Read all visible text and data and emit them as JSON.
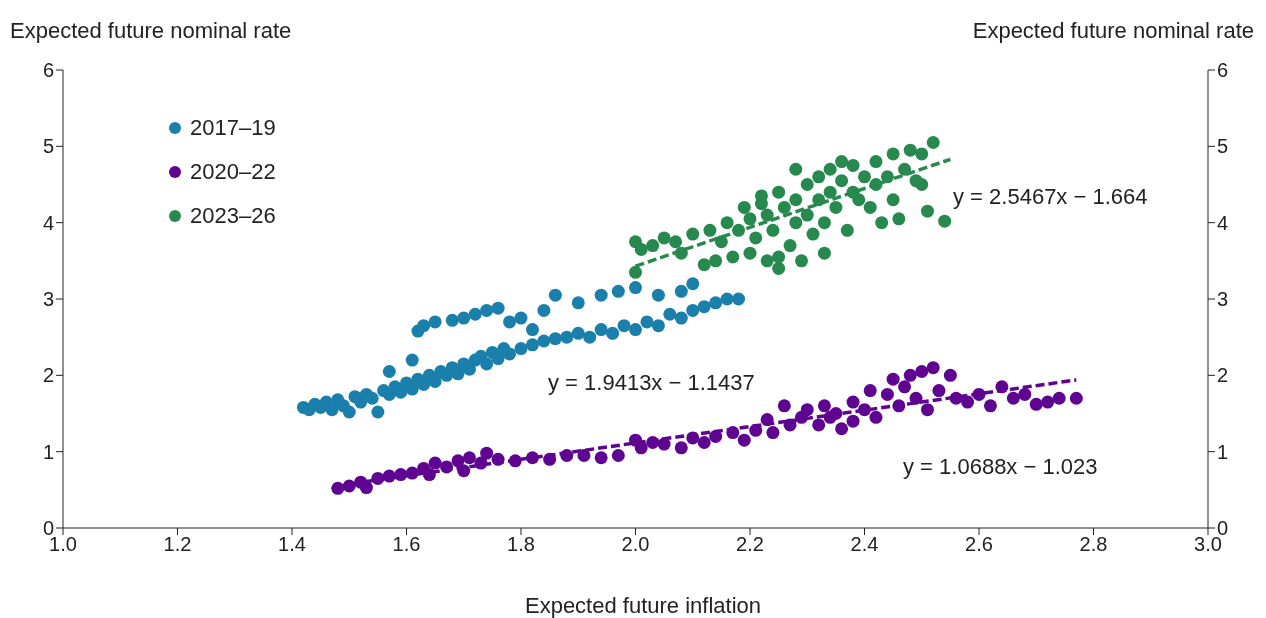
{
  "chart_data": {
    "type": "scatter",
    "xlabel": "Expected future inflation",
    "ylabel": "Expected future nominal rate",
    "y2label": "Expected future nominal rate",
    "xlim": [
      1.0,
      3.0
    ],
    "xticks": [
      {
        "value": 1.0,
        "label": "1.0"
      },
      1.2,
      1.4,
      1.6,
      1.8,
      {
        "value": 2.0,
        "label": "2.0"
      },
      2.2,
      2.4,
      2.6,
      2.8,
      {
        "value": 3.0,
        "label": "3.0"
      }
    ],
    "ylim": [
      0,
      6
    ],
    "yticks": [
      0,
      1,
      2,
      3,
      4,
      5,
      6
    ],
    "y2lim": [
      0,
      6
    ],
    "y2ticks": [
      0,
      1,
      2,
      3,
      4,
      5,
      6
    ],
    "grid": false,
    "legend": "top left",
    "marker": "circle",
    "annotations": [
      "y = 1.9413x − 1.1437",
      "y = 2.5467x − 1.664",
      "y = 1.0688x − 1.023"
    ],
    "series": [
      {
        "name": "2017–19",
        "color": "#1a7fab",
        "x": [
          1.42,
          1.43,
          1.44,
          1.45,
          1.46,
          1.47,
          1.48,
          1.49,
          1.5,
          1.51,
          1.52,
          1.53,
          1.54,
          1.55,
          1.56,
          1.57,
          1.58,
          1.59,
          1.6,
          1.61,
          1.62,
          1.63,
          1.64,
          1.65,
          1.66,
          1.67,
          1.68,
          1.69,
          1.7,
          1.71,
          1.72,
          1.73,
          1.74,
          1.75,
          1.76,
          1.77,
          1.78,
          1.8,
          1.82,
          1.84,
          1.86,
          1.88,
          1.9,
          1.92,
          1.94,
          1.96,
          1.98,
          2.0,
          2.02,
          2.04,
          2.06,
          2.08,
          2.1,
          2.12,
          2.14,
          2.16,
          2.18,
          1.57,
          1.61,
          1.62,
          1.63,
          1.65,
          1.68,
          1.7,
          1.72,
          1.74,
          1.76,
          1.78,
          1.8,
          1.82,
          1.84,
          1.86,
          1.9,
          1.94,
          1.97,
          2.0,
          2.04,
          2.08,
          2.1
        ],
        "values": [
          1.58,
          1.55,
          1.62,
          1.58,
          1.65,
          1.55,
          1.68,
          1.6,
          1.52,
          1.72,
          1.65,
          1.75,
          1.7,
          1.52,
          1.8,
          1.75,
          1.85,
          1.78,
          1.9,
          1.82,
          1.95,
          1.88,
          2.0,
          1.92,
          2.05,
          2.0,
          2.1,
          2.02,
          2.15,
          2.08,
          2.2,
          2.25,
          2.15,
          2.3,
          2.22,
          2.35,
          2.28,
          2.35,
          2.4,
          2.45,
          2.48,
          2.5,
          2.55,
          2.5,
          2.6,
          2.55,
          2.65,
          2.6,
          2.7,
          2.65,
          2.8,
          2.75,
          2.85,
          2.9,
          2.95,
          3.0,
          3.0,
          2.05,
          2.2,
          2.58,
          2.65,
          2.7,
          2.72,
          2.75,
          2.8,
          2.85,
          2.88,
          2.7,
          2.75,
          2.6,
          2.85,
          3.05,
          2.95,
          3.05,
          3.1,
          3.15,
          3.05,
          3.1,
          3.2
        ]
      },
      {
        "name": "2020–22",
        "color": "#5f0490",
        "x": [
          1.48,
          1.5,
          1.52,
          1.53,
          1.55,
          1.57,
          1.59,
          1.61,
          1.63,
          1.64,
          1.65,
          1.67,
          1.69,
          1.7,
          1.71,
          1.73,
          1.74,
          1.76,
          1.79,
          1.82,
          1.85,
          1.88,
          1.91,
          1.94,
          1.97,
          2.0,
          2.01,
          2.03,
          2.05,
          2.08,
          2.1,
          2.12,
          2.14,
          2.17,
          2.19,
          2.21,
          2.23,
          2.24,
          2.26,
          2.27,
          2.29,
          2.3,
          2.32,
          2.33,
          2.35,
          2.36,
          2.38,
          2.4,
          2.41,
          2.42,
          2.44,
          2.45,
          2.46,
          2.47,
          2.48,
          2.49,
          2.5,
          2.51,
          2.52,
          2.53,
          2.55,
          2.56,
          2.58,
          2.6,
          2.62,
          2.64,
          2.66,
          2.68,
          2.7,
          2.72,
          2.74,
          2.77,
          2.38,
          2.34
        ],
        "values": [
          0.52,
          0.55,
          0.6,
          0.53,
          0.65,
          0.68,
          0.7,
          0.72,
          0.78,
          0.7,
          0.85,
          0.8,
          0.88,
          0.75,
          0.92,
          0.85,
          0.98,
          0.9,
          0.88,
          0.92,
          0.9,
          0.95,
          0.95,
          0.92,
          0.95,
          1.15,
          1.05,
          1.12,
          1.1,
          1.05,
          1.18,
          1.12,
          1.2,
          1.25,
          1.15,
          1.28,
          1.42,
          1.25,
          1.6,
          1.35,
          1.45,
          1.55,
          1.35,
          1.6,
          1.5,
          1.3,
          1.65,
          1.55,
          1.8,
          1.45,
          1.75,
          1.95,
          1.6,
          1.85,
          2.0,
          1.7,
          2.05,
          1.55,
          2.1,
          1.8,
          2.0,
          1.7,
          1.65,
          1.75,
          1.6,
          1.85,
          1.7,
          1.75,
          1.62,
          1.65,
          1.7,
          1.7,
          1.4,
          1.45
        ]
      },
      {
        "name": "2023–26",
        "color": "#27894e",
        "x": [
          2.0,
          2.0,
          2.01,
          2.03,
          2.05,
          2.07,
          2.08,
          2.1,
          2.12,
          2.13,
          2.14,
          2.15,
          2.16,
          2.17,
          2.18,
          2.19,
          2.2,
          2.2,
          2.21,
          2.22,
          2.23,
          2.23,
          2.24,
          2.25,
          2.25,
          2.26,
          2.27,
          2.28,
          2.28,
          2.29,
          2.3,
          2.3,
          2.31,
          2.32,
          2.32,
          2.33,
          2.34,
          2.34,
          2.35,
          2.36,
          2.37,
          2.38,
          2.38,
          2.39,
          2.4,
          2.41,
          2.42,
          2.42,
          2.43,
          2.44,
          2.45,
          2.45,
          2.46,
          2.47,
          2.48,
          2.49,
          2.5,
          2.5,
          2.52,
          2.51,
          2.54,
          2.36,
          2.28,
          2.22,
          2.33,
          2.25
        ],
        "values": [
          3.35,
          3.75,
          3.65,
          3.7,
          3.8,
          3.75,
          3.6,
          3.85,
          3.45,
          3.9,
          3.5,
          3.75,
          4.0,
          3.55,
          3.9,
          4.2,
          3.6,
          4.05,
          3.8,
          4.25,
          3.5,
          4.1,
          3.9,
          4.4,
          3.4,
          4.2,
          3.7,
          4.3,
          4.0,
          3.5,
          4.5,
          4.1,
          3.85,
          4.6,
          4.3,
          4.0,
          4.7,
          4.4,
          4.2,
          4.55,
          3.9,
          4.75,
          4.4,
          4.3,
          4.6,
          4.2,
          4.8,
          4.5,
          4.0,
          4.6,
          4.9,
          4.3,
          4.05,
          4.7,
          4.95,
          4.55,
          4.9,
          4.5,
          5.05,
          4.15,
          4.02,
          4.8,
          4.7,
          4.35,
          3.6,
          3.55
        ]
      },
      {
        "type": "line",
        "line_style": "dashed",
        "marker": "none",
        "color": "#27894e",
        "x": [
          2.0,
          2.55
        ],
        "values": [
          3.43,
          4.83
        ]
      },
      {
        "type": "line",
        "line_style": "dashed",
        "marker": "none",
        "color": "#5f0490",
        "x": [
          1.53,
          2.77
        ],
        "values": [
          0.61,
          1.94
        ]
      }
    ]
  }
}
